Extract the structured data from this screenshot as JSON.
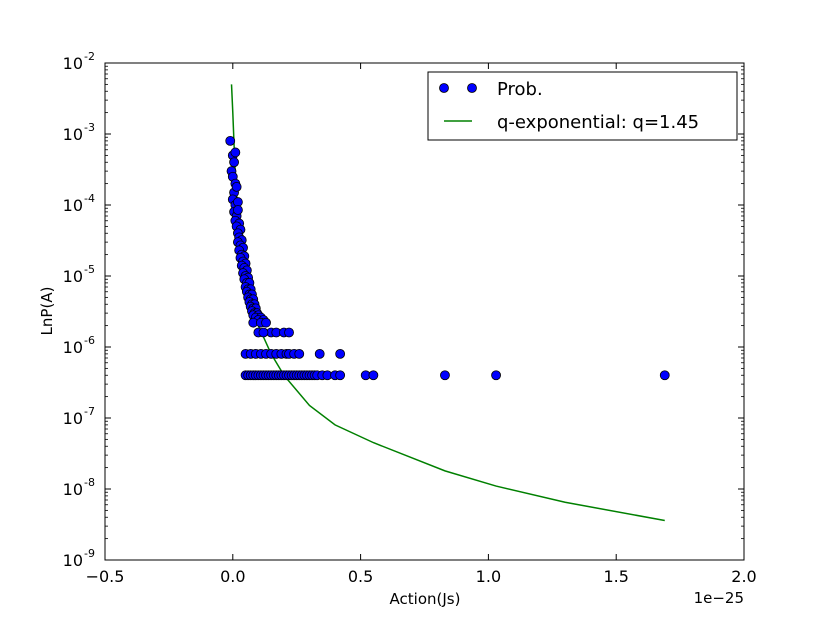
{
  "chart_data": {
    "type": "scatter",
    "title": "",
    "xlabel": "Action(Js)",
    "ylabel": "LnP(A)",
    "x_offset_label": "1e−25",
    "xlim": [
      -0.5,
      2.0
    ],
    "ylim_log10": [
      -9,
      -2
    ],
    "yscale": "log",
    "grid": false,
    "legend_position": "top-right",
    "x_ticks": [
      {
        "value": -0.5,
        "label": "−0.5"
      },
      {
        "value": 0.0,
        "label": "0.0"
      },
      {
        "value": 0.5,
        "label": "0.5"
      },
      {
        "value": 1.0,
        "label": "1.0"
      },
      {
        "value": 1.5,
        "label": "1.5"
      },
      {
        "value": 2.0,
        "label": "2.0"
      }
    ],
    "y_ticks": [
      {
        "exp": -2,
        "base": "10",
        "power": "-2"
      },
      {
        "exp": -3,
        "base": "10",
        "power": "-3"
      },
      {
        "exp": -4,
        "base": "10",
        "power": "-4"
      },
      {
        "exp": -5,
        "base": "10",
        "power": "-5"
      },
      {
        "exp": -6,
        "base": "10",
        "power": "-6"
      },
      {
        "exp": -7,
        "base": "10",
        "power": "-7"
      },
      {
        "exp": -8,
        "base": "10",
        "power": "-8"
      },
      {
        "exp": -9,
        "base": "10",
        "power": "-9"
      }
    ],
    "series": [
      {
        "name": "Prob.",
        "kind": "scatter",
        "color": "#0000ff",
        "edge_color": "#000000",
        "points": [
          [
            -0.01,
            0.0008
          ],
          [
            0.0,
            0.0005
          ],
          [
            0.01,
            0.00055
          ],
          [
            0.005,
            0.0004
          ],
          [
            -0.005,
            0.0003
          ],
          [
            0.0,
            0.00025
          ],
          [
            0.01,
            0.0002
          ],
          [
            0.005,
            0.00015
          ],
          [
            0.015,
            0.00018
          ],
          [
            0.0,
            0.00012
          ],
          [
            0.01,
            0.0001
          ],
          [
            0.02,
            0.00011
          ],
          [
            0.005,
            8e-05
          ],
          [
            0.015,
            7e-05
          ],
          [
            0.02,
            8.5e-05
          ],
          [
            0.01,
            6e-05
          ],
          [
            0.025,
            5.5e-05
          ],
          [
            0.015,
            5e-05
          ],
          [
            0.03,
            4.5e-05
          ],
          [
            0.02,
            4e-05
          ],
          [
            0.025,
            3.5e-05
          ],
          [
            0.035,
            3.2e-05
          ],
          [
            0.02,
            3e-05
          ],
          [
            0.03,
            2.7e-05
          ],
          [
            0.04,
            2.5e-05
          ],
          [
            0.025,
            2.3e-05
          ],
          [
            0.035,
            2e-05
          ],
          [
            0.045,
            1.9e-05
          ],
          [
            0.03,
            1.8e-05
          ],
          [
            0.04,
            1.6e-05
          ],
          [
            0.05,
            1.5e-05
          ],
          [
            0.035,
            1.4e-05
          ],
          [
            0.045,
            1.3e-05
          ],
          [
            0.055,
            1.2e-05
          ],
          [
            0.04,
            1.1e-05
          ],
          [
            0.05,
            1e-05
          ],
          [
            0.06,
            9.5e-06
          ],
          [
            0.045,
            9e-06
          ],
          [
            0.055,
            8e-06
          ],
          [
            0.065,
            8e-06
          ],
          [
            0.05,
            7e-06
          ],
          [
            0.06,
            6.5e-06
          ],
          [
            0.07,
            6.5e-06
          ],
          [
            0.055,
            6e-06
          ],
          [
            0.065,
            5.5e-06
          ],
          [
            0.075,
            5.5e-06
          ],
          [
            0.06,
            5e-06
          ],
          [
            0.07,
            4.7e-06
          ],
          [
            0.08,
            4.7e-06
          ],
          [
            0.065,
            4.3e-06
          ],
          [
            0.075,
            4e-06
          ],
          [
            0.085,
            4e-06
          ],
          [
            0.07,
            3.7e-06
          ],
          [
            0.08,
            3.5e-06
          ],
          [
            0.09,
            3.5e-06
          ],
          [
            0.075,
            3.2e-06
          ],
          [
            0.085,
            3e-06
          ],
          [
            0.095,
            3e-06
          ],
          [
            0.08,
            2.8e-06
          ],
          [
            0.1,
            2.8e-06
          ],
          [
            0.09,
            2.6e-06
          ],
          [
            0.11,
            2.6e-06
          ],
          [
            0.1,
            2.4e-06
          ],
          [
            0.12,
            2.4e-06
          ],
          [
            0.08,
            2.2e-06
          ],
          [
            0.11,
            2.2e-06
          ],
          [
            0.13,
            2.2e-06
          ],
          [
            0.15,
            1.6e-06
          ],
          [
            0.17,
            1.6e-06
          ],
          [
            0.2,
            1.6e-06
          ],
          [
            0.22,
            1.6e-06
          ],
          [
            0.1,
            1.6e-06
          ],
          [
            0.12,
            1.6e-06
          ],
          [
            0.05,
            8e-07
          ],
          [
            0.07,
            8e-07
          ],
          [
            0.09,
            8e-07
          ],
          [
            0.11,
            8e-07
          ],
          [
            0.13,
            8e-07
          ],
          [
            0.15,
            8e-07
          ],
          [
            0.17,
            8e-07
          ],
          [
            0.19,
            8e-07
          ],
          [
            0.21,
            8e-07
          ],
          [
            0.22,
            8e-07
          ],
          [
            0.24,
            8e-07
          ],
          [
            0.26,
            8e-07
          ],
          [
            0.34,
            8e-07
          ],
          [
            0.42,
            8e-07
          ],
          [
            0.05,
            4e-07
          ],
          [
            0.06,
            4e-07
          ],
          [
            0.07,
            4e-07
          ],
          [
            0.08,
            4e-07
          ],
          [
            0.09,
            4e-07
          ],
          [
            0.1,
            4e-07
          ],
          [
            0.11,
            4e-07
          ],
          [
            0.12,
            4e-07
          ],
          [
            0.13,
            4e-07
          ],
          [
            0.14,
            4e-07
          ],
          [
            0.15,
            4e-07
          ],
          [
            0.16,
            4e-07
          ],
          [
            0.17,
            4e-07
          ],
          [
            0.18,
            4e-07
          ],
          [
            0.19,
            4e-07
          ],
          [
            0.2,
            4e-07
          ],
          [
            0.21,
            4e-07
          ],
          [
            0.22,
            4e-07
          ],
          [
            0.23,
            4e-07
          ],
          [
            0.24,
            4e-07
          ],
          [
            0.25,
            4e-07
          ],
          [
            0.26,
            4e-07
          ],
          [
            0.27,
            4e-07
          ],
          [
            0.28,
            4e-07
          ],
          [
            0.29,
            4e-07
          ],
          [
            0.3,
            4e-07
          ],
          [
            0.31,
            4e-07
          ],
          [
            0.32,
            4e-07
          ],
          [
            0.33,
            4e-07
          ],
          [
            0.35,
            4e-07
          ],
          [
            0.37,
            4e-07
          ],
          [
            0.4,
            4e-07
          ],
          [
            0.42,
            4e-07
          ],
          [
            0.52,
            4e-07
          ],
          [
            0.55,
            4e-07
          ],
          [
            0.83,
            4e-07
          ],
          [
            1.03,
            4e-07
          ],
          [
            1.69,
            4e-07
          ]
        ]
      },
      {
        "name": "q-exponential: q=1.45",
        "kind": "line",
        "color": "#008000",
        "points": [
          [
            -0.005,
            0.005
          ],
          [
            0.0,
            0.002
          ],
          [
            0.005,
            0.0007
          ],
          [
            0.01,
            0.00025
          ],
          [
            0.02,
            8e-05
          ],
          [
            0.03,
            3.5e-05
          ],
          [
            0.04,
            1.8e-05
          ],
          [
            0.05,
            1e-05
          ],
          [
            0.07,
            4.5e-06
          ],
          [
            0.1,
            2e-06
          ],
          [
            0.15,
            8e-07
          ],
          [
            0.2,
            4e-07
          ],
          [
            0.3,
            1.5e-07
          ],
          [
            0.4,
            8e-08
          ],
          [
            0.55,
            4.5e-08
          ],
          [
            0.83,
            1.8e-08
          ],
          [
            1.03,
            1.1e-08
          ],
          [
            1.3,
            6.5e-09
          ],
          [
            1.69,
            3.6e-09
          ]
        ]
      }
    ]
  }
}
